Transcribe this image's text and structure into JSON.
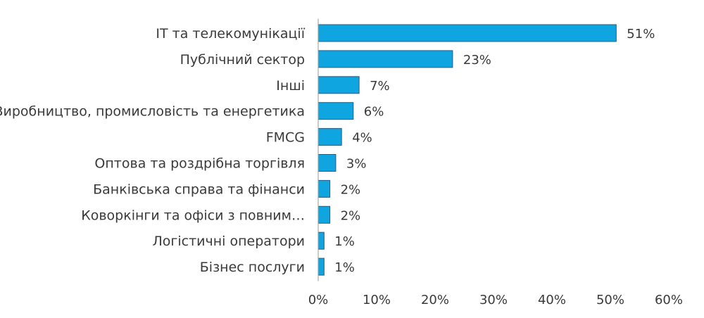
{
  "chart_data": {
    "type": "bar",
    "orientation": "horizontal",
    "categories": [
      "ІТ та телекомунікації",
      "Публічний сектор",
      "Інші",
      "Виробництво, промисловість та енергетика",
      "FMCG",
      "Оптова та роздрібна торгівля",
      "Банківська справа та фінанси",
      "Коворкінги та офіси з повним…",
      "Логістичні оператори",
      "Бізнес послуги"
    ],
    "values": [
      51,
      23,
      7,
      6,
      4,
      3,
      2,
      2,
      1,
      1
    ],
    "value_labels": [
      "51%",
      "23%",
      "7%",
      "6%",
      "4%",
      "3%",
      "2%",
      "2%",
      "1%",
      "1%"
    ],
    "xlim": [
      0,
      60
    ],
    "xticks": [
      0,
      10,
      20,
      30,
      40,
      50,
      60
    ],
    "xtick_labels": [
      "0%",
      "10%",
      "20%",
      "30%",
      "40%",
      "50%",
      "60%"
    ],
    "title": "",
    "xlabel": "",
    "ylabel": "",
    "grid": false,
    "legend": false,
    "bar_color": "#0ea5e0",
    "bar_edge_color": "#2a5d86",
    "axis_color": "#9a9a9a"
  }
}
